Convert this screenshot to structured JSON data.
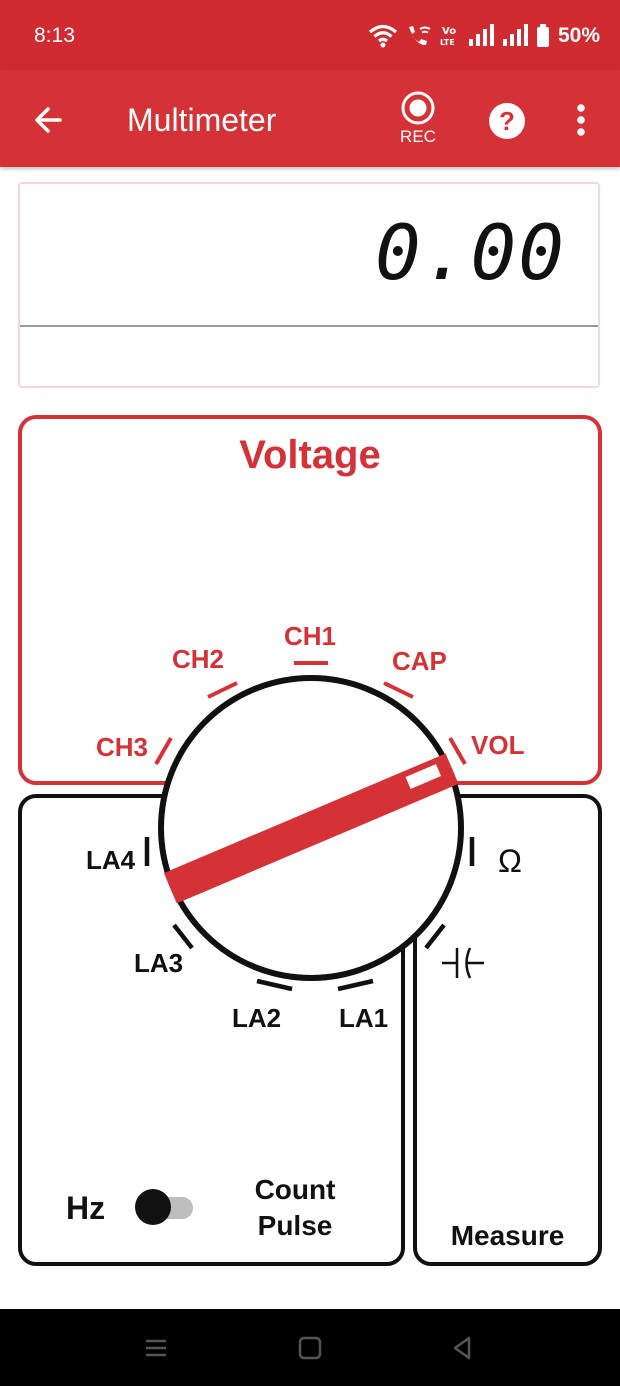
{
  "status_bar": {
    "time": "8:13",
    "battery": "50%"
  },
  "app_bar": {
    "title": "Multimeter",
    "rec_label": "REC"
  },
  "display": {
    "value": "0.00",
    "unit": ""
  },
  "mode_title": "Voltage",
  "dial": {
    "red_labels": [
      "CH3",
      "CH2",
      "CH1",
      "CAP",
      "VOL"
    ],
    "black_labels": [
      "LA4",
      "LA3",
      "LA2",
      "LA1",
      "Ω"
    ],
    "selected": "VOL"
  },
  "controls": {
    "hz_label": "Hz",
    "count_line1": "Count",
    "count_line2": "Pulse",
    "measure_label": "Measure",
    "toggle_on": false
  },
  "colors": {
    "accent": "#d43237",
    "status_bar": "#cf2b30",
    "dark": "#111111"
  },
  "icons": {
    "status": [
      "wifi-icon",
      "wifi-calling-icon",
      "volte-icon",
      "signal-icon",
      "signal-icon",
      "battery-icon"
    ],
    "app_bar": [
      "back-arrow-icon",
      "record-icon",
      "help-icon",
      "more-vert-icon"
    ],
    "nav": [
      "recents-icon",
      "home-icon",
      "back-icon"
    ]
  }
}
